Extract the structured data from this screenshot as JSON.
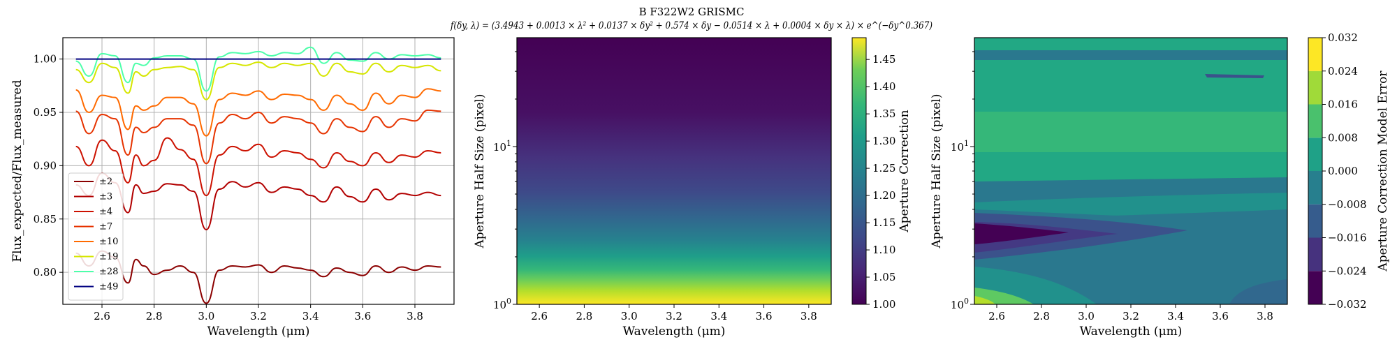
{
  "figure": {
    "title": "B F322W2 GRISMC",
    "formula": "f(δy, λ) = (3.4943 + 0.0013 × λ² + 0.0137 × δy² + 0.574 × δy − 0.0514 × λ + 0.0004 × δy × λ) × e^(−δy^0.367)"
  },
  "chart_data": [
    {
      "type": "line",
      "xlabel": "Wavelength (μm)",
      "ylabel": "Flux_expected/Flux_measured",
      "xlim": [
        2.45,
        3.95
      ],
      "ylim": [
        0.77,
        1.02
      ],
      "xticks": [
        2.6,
        2.8,
        3.0,
        3.2,
        3.4,
        3.6,
        3.8
      ],
      "xtick_labels": [
        "2.6",
        "2.8",
        "3.0",
        "3.2",
        "3.4",
        "3.6",
        "3.8"
      ],
      "yticks": [
        0.8,
        0.85,
        0.9,
        0.95,
        1.0
      ],
      "ytick_labels": [
        "0.80",
        "0.85",
        "0.90",
        "0.95",
        "1.00"
      ],
      "grid": true,
      "legend": {
        "placement": "lower-left"
      },
      "x": [
        2.5,
        2.55,
        2.6,
        2.65,
        2.7,
        2.73,
        2.76,
        2.8,
        2.85,
        2.9,
        2.95,
        3.0,
        3.05,
        3.1,
        3.15,
        3.2,
        3.25,
        3.3,
        3.35,
        3.4,
        3.45,
        3.5,
        3.55,
        3.6,
        3.65,
        3.7,
        3.75,
        3.8,
        3.85,
        3.9
      ],
      "series": [
        {
          "name": "±2",
          "color": "#8b0000",
          "values": [
            0.818,
            0.806,
            0.82,
            0.814,
            0.79,
            0.812,
            0.806,
            0.798,
            0.802,
            0.806,
            0.8,
            0.771,
            0.802,
            0.806,
            0.805,
            0.807,
            0.8,
            0.806,
            0.804,
            0.802,
            0.796,
            0.804,
            0.8,
            0.797,
            0.806,
            0.8,
            0.805,
            0.802,
            0.806,
            0.805
          ]
        },
        {
          "name": "±3",
          "color": "#b20000",
          "values": [
            0.882,
            0.872,
            0.893,
            0.884,
            0.856,
            0.882,
            0.874,
            0.876,
            0.883,
            0.882,
            0.876,
            0.84,
            0.878,
            0.885,
            0.88,
            0.884,
            0.875,
            0.88,
            0.878,
            0.872,
            0.866,
            0.88,
            0.871,
            0.866,
            0.878,
            0.868,
            0.874,
            0.872,
            0.875,
            0.872
          ]
        },
        {
          "name": "±4",
          "color": "#cc1100",
          "values": [
            0.918,
            0.9,
            0.924,
            0.914,
            0.884,
            0.91,
            0.9,
            0.905,
            0.926,
            0.915,
            0.906,
            0.872,
            0.91,
            0.918,
            0.914,
            0.92,
            0.908,
            0.914,
            0.912,
            0.906,
            0.898,
            0.912,
            0.904,
            0.9,
            0.912,
            0.903,
            0.91,
            0.908,
            0.914,
            0.912
          ]
        },
        {
          "name": "±7",
          "color": "#e63300",
          "values": [
            0.951,
            0.93,
            0.948,
            0.944,
            0.91,
            0.936,
            0.931,
            0.936,
            0.944,
            0.944,
            0.938,
            0.902,
            0.94,
            0.948,
            0.944,
            0.95,
            0.94,
            0.946,
            0.944,
            0.94,
            0.93,
            0.944,
            0.936,
            0.932,
            0.946,
            0.936,
            0.944,
            0.942,
            0.952,
            0.951
          ]
        },
        {
          "name": "±10",
          "color": "#ff6a00",
          "values": [
            0.971,
            0.95,
            0.966,
            0.964,
            0.934,
            0.956,
            0.952,
            0.956,
            0.964,
            0.964,
            0.958,
            0.928,
            0.962,
            0.968,
            0.966,
            0.97,
            0.962,
            0.967,
            0.966,
            0.962,
            0.952,
            0.966,
            0.958,
            0.952,
            0.968,
            0.958,
            0.966,
            0.964,
            0.972,
            0.97
          ]
        },
        {
          "name": "±19",
          "color": "#d6e600",
          "values": [
            0.99,
            0.978,
            0.996,
            0.992,
            0.968,
            0.988,
            0.984,
            0.99,
            0.992,
            0.993,
            0.99,
            0.962,
            0.992,
            0.996,
            0.994,
            0.997,
            0.992,
            0.996,
            0.994,
            0.996,
            0.984,
            0.996,
            0.988,
            0.986,
            0.996,
            0.988,
            0.994,
            0.992,
            0.994,
            0.989
          ]
        },
        {
          "name": "±28",
          "color": "#4dffaa",
          "values": [
            0.998,
            0.984,
            1.005,
            1.003,
            0.978,
            0.996,
            0.994,
            1.001,
            1.003,
            1.003,
            1.0,
            0.97,
            1.002,
            1.006,
            1.005,
            1.007,
            1.003,
            1.006,
            1.005,
            1.011,
            0.996,
            1.006,
            0.999,
            0.998,
            1.006,
            1.0,
            1.004,
            1.003,
            1.004,
            1.001
          ]
        },
        {
          "name": "±49",
          "color": "#000080",
          "values": [
            1.0,
            1.0,
            1.0,
            1.0,
            1.0,
            1.0,
            1.0,
            1.0,
            1.0,
            1.0,
            1.0,
            1.0,
            1.0,
            1.0,
            1.0,
            1.0,
            1.0,
            1.0,
            1.0,
            1.0,
            1.0,
            1.0,
            1.0,
            1.0,
            1.0,
            1.0,
            1.0,
            1.0,
            1.0,
            1.0
          ]
        }
      ]
    },
    {
      "type": "heatmap",
      "xlabel": "Wavelength (μm)",
      "ylabel": "Aperture Half Size (pixel)",
      "xlim": [
        2.5,
        3.9
      ],
      "ylim": [
        1,
        49
      ],
      "yscale": "log",
      "xticks": [
        2.6,
        2.8,
        3.0,
        3.2,
        3.4,
        3.6,
        3.8
      ],
      "xtick_labels": [
        "2.6",
        "2.8",
        "3.0",
        "3.2",
        "3.4",
        "3.6",
        "3.8"
      ],
      "yticks_major": [
        1,
        10
      ],
      "ytick_labels": [
        "10^0",
        "10^1"
      ],
      "colormap": "viridis",
      "colorbar": {
        "label": "Aperture Correction",
        "range": [
          1.0,
          1.49
        ],
        "ticks": [
          1.0,
          1.05,
          1.1,
          1.15,
          1.2,
          1.25,
          1.3,
          1.35,
          1.4,
          1.45
        ],
        "tick_labels": [
          "1.00",
          "1.05",
          "1.10",
          "1.15",
          "1.20",
          "1.25",
          "1.30",
          "1.35",
          "1.40",
          "1.45"
        ]
      }
    },
    {
      "type": "heatmap",
      "xlabel": "Wavelength (μm)",
      "ylabel": "Aperture Half Size (pixel)",
      "xlim": [
        2.5,
        3.9
      ],
      "ylim": [
        1,
        49
      ],
      "yscale": "log",
      "xticks": [
        2.6,
        2.8,
        3.0,
        3.2,
        3.4,
        3.6,
        3.8
      ],
      "xtick_labels": [
        "2.6",
        "2.8",
        "3.0",
        "3.2",
        "3.4",
        "3.6",
        "3.8"
      ],
      "yticks_major": [
        1,
        10
      ],
      "ytick_labels": [
        "10^0",
        "10^1"
      ],
      "colormap": "viridis",
      "levels": [
        -0.032,
        -0.024,
        -0.016,
        -0.008,
        0.0,
        0.008,
        0.016,
        0.024,
        0.032
      ],
      "colorbar": {
        "label": "Aperture Correction Model Error",
        "range": [
          -0.032,
          0.032
        ],
        "ticks": [
          -0.032,
          -0.024,
          -0.016,
          -0.008,
          0.0,
          0.008,
          0.016,
          0.024,
          0.032
        ],
        "tick_labels": [
          "−0.032",
          "−0.024",
          "−0.016",
          "−0.008",
          "0.000",
          "0.008",
          "0.016",
          "0.024",
          "0.032"
        ]
      }
    }
  ]
}
